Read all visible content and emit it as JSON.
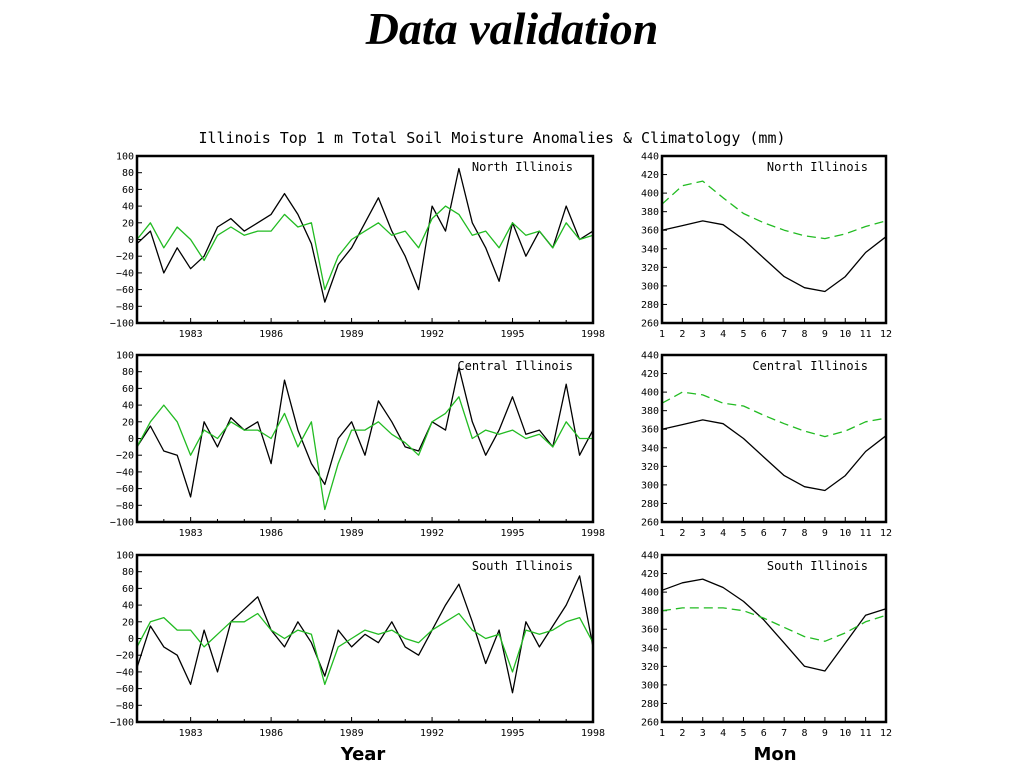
{
  "slide": {
    "title": "Data validation"
  },
  "figure": {
    "title": "Illinois Top 1 m Total Soil Moisture Anomalies & Climatology (mm)",
    "xlabel_left": "Year",
    "xlabel_right": "Mon",
    "colors": {
      "series1": "#000000",
      "series2": "#22bb22",
      "frame": "#000000"
    }
  },
  "chart_data": [
    {
      "type": "line",
      "panel": "anomaly",
      "label": "North Illinois",
      "xlim": [
        1981,
        1998
      ],
      "ylim": [
        -100,
        100
      ],
      "xticks": [
        "1983",
        "1986",
        "1989",
        "1992",
        "1995",
        "1998"
      ],
      "yticks": [
        "100",
        "80",
        "60",
        "40",
        "20",
        "0",
        "−20",
        "−40",
        "−60",
        "−80",
        "−100"
      ],
      "xticks_num": [
        1983,
        1986,
        1989,
        1992,
        1995,
        1998
      ],
      "yticks_num": [
        100,
        80,
        60,
        40,
        20,
        0,
        -20,
        -40,
        -60,
        -80,
        -100
      ],
      "x": [
        1981,
        1981.5,
        1982,
        1982.5,
        1983,
        1983.5,
        1984,
        1984.5,
        1985,
        1985.5,
        1986,
        1986.5,
        1987,
        1987.5,
        1988,
        1988.5,
        1989,
        1989.5,
        1990,
        1990.5,
        1991,
        1991.5,
        1992,
        1992.5,
        1993,
        1993.5,
        1994,
        1994.5,
        1995,
        1995.5,
        1996,
        1996.5,
        1997,
        1997.5,
        1998
      ],
      "series": [
        {
          "values": [
            -5,
            10,
            -40,
            -10,
            -35,
            -20,
            15,
            25,
            10,
            20,
            30,
            55,
            30,
            -5,
            -75,
            -30,
            -10,
            20,
            50,
            10,
            -20,
            -60,
            40,
            10,
            85,
            20,
            -10,
            -50,
            20,
            -20,
            10,
            -10,
            40,
            0,
            10
          ]
        },
        {
          "values": [
            0,
            20,
            -10,
            15,
            0,
            -25,
            5,
            15,
            5,
            10,
            10,
            30,
            15,
            20,
            -60,
            -20,
            0,
            10,
            20,
            5,
            10,
            -10,
            25,
            40,
            30,
            5,
            10,
            -10,
            20,
            5,
            10,
            -10,
            20,
            0,
            5
          ]
        }
      ]
    },
    {
      "type": "line",
      "panel": "climatology",
      "label": "North Illinois",
      "xlim": [
        1,
        12
      ],
      "ylim": [
        260,
        440
      ],
      "xticks": [
        "1",
        "2",
        "3",
        "4",
        "5",
        "6",
        "7",
        "8",
        "9",
        "10",
        "11",
        "12"
      ],
      "yticks": [
        "440",
        "420",
        "400",
        "380",
        "360",
        "340",
        "320",
        "300",
        "280",
        "260"
      ],
      "xticks_num": [
        1,
        2,
        3,
        4,
        5,
        6,
        7,
        8,
        9,
        10,
        11,
        12
      ],
      "yticks_num": [
        440,
        420,
        400,
        380,
        360,
        340,
        320,
        300,
        280,
        260
      ],
      "x": [
        1,
        2,
        3,
        4,
        5,
        6,
        7,
        8,
        9,
        10,
        11,
        12
      ],
      "series": [
        {
          "values": [
            360,
            365,
            370,
            366,
            350,
            330,
            310,
            298,
            294,
            310,
            336,
            353
          ]
        },
        {
          "values": [
            388,
            408,
            413,
            395,
            378,
            368,
            360,
            354,
            351,
            356,
            364,
            370
          ]
        }
      ]
    },
    {
      "type": "line",
      "panel": "anomaly",
      "label": "Central Illinois",
      "xlim": [
        1981,
        1998
      ],
      "ylim": [
        -100,
        100
      ],
      "xticks": [
        "1983",
        "1986",
        "1989",
        "1992",
        "1995",
        "1998"
      ],
      "yticks": [
        "100",
        "80",
        "60",
        "40",
        "20",
        "0",
        "−20",
        "−40",
        "−60",
        "−80",
        "−100"
      ],
      "xticks_num": [
        1983,
        1986,
        1989,
        1992,
        1995,
        1998
      ],
      "yticks_num": [
        100,
        80,
        60,
        40,
        20,
        0,
        -20,
        -40,
        -60,
        -80,
        -100
      ],
      "x": [
        1981,
        1981.5,
        1982,
        1982.5,
        1983,
        1983.5,
        1984,
        1984.5,
        1985,
        1985.5,
        1986,
        1986.5,
        1987,
        1987.5,
        1988,
        1988.5,
        1989,
        1989.5,
        1990,
        1990.5,
        1991,
        1991.5,
        1992,
        1992.5,
        1993,
        1993.5,
        1994,
        1994.5,
        1995,
        1995.5,
        1996,
        1996.5,
        1997,
        1997.5,
        1998
      ],
      "series": [
        {
          "values": [
            -10,
            15,
            -15,
            -20,
            -70,
            20,
            -10,
            25,
            10,
            20,
            -30,
            70,
            10,
            -30,
            -55,
            0,
            20,
            -20,
            45,
            20,
            -10,
            -15,
            20,
            10,
            85,
            20,
            -20,
            10,
            50,
            5,
            10,
            -10,
            65,
            -20,
            10
          ]
        },
        {
          "values": [
            -10,
            20,
            40,
            20,
            -20,
            10,
            0,
            20,
            10,
            10,
            0,
            30,
            -10,
            20,
            -85,
            -30,
            10,
            10,
            20,
            5,
            -5,
            -20,
            20,
            30,
            50,
            0,
            10,
            5,
            10,
            0,
            5,
            -10,
            20,
            0,
            0
          ]
        }
      ]
    },
    {
      "type": "line",
      "panel": "climatology",
      "label": "Central Illinois",
      "xlim": [
        1,
        12
      ],
      "ylim": [
        260,
        440
      ],
      "xticks": [
        "1",
        "2",
        "3",
        "4",
        "5",
        "6",
        "7",
        "8",
        "9",
        "10",
        "11",
        "12"
      ],
      "yticks": [
        "440",
        "420",
        "400",
        "380",
        "360",
        "340",
        "320",
        "300",
        "280",
        "260"
      ],
      "xticks_num": [
        1,
        2,
        3,
        4,
        5,
        6,
        7,
        8,
        9,
        10,
        11,
        12
      ],
      "yticks_num": [
        440,
        420,
        400,
        380,
        360,
        340,
        320,
        300,
        280,
        260
      ],
      "x": [
        1,
        2,
        3,
        4,
        5,
        6,
        7,
        8,
        9,
        10,
        11,
        12
      ],
      "series": [
        {
          "values": [
            360,
            365,
            370,
            366,
            350,
            330,
            310,
            298,
            294,
            310,
            336,
            353
          ]
        },
        {
          "values": [
            388,
            400,
            397,
            388,
            385,
            375,
            366,
            358,
            352,
            358,
            368,
            372
          ]
        }
      ]
    },
    {
      "type": "line",
      "panel": "anomaly",
      "label": "South Illinois",
      "xlim": [
        1981,
        1998
      ],
      "ylim": [
        -100,
        100
      ],
      "xticks": [
        "1983",
        "1986",
        "1989",
        "1992",
        "1995",
        "1998"
      ],
      "yticks": [
        "100",
        "80",
        "60",
        "40",
        "20",
        "0",
        "−20",
        "−40",
        "−60",
        "−80",
        "−100"
      ],
      "xticks_num": [
        1983,
        1986,
        1989,
        1992,
        1995,
        1998
      ],
      "yticks_num": [
        100,
        80,
        60,
        40,
        20,
        0,
        -20,
        -40,
        -60,
        -80,
        -100
      ],
      "x": [
        1981,
        1981.5,
        1982,
        1982.5,
        1983,
        1983.5,
        1984,
        1984.5,
        1985,
        1985.5,
        1986,
        1986.5,
        1987,
        1987.5,
        1988,
        1988.5,
        1989,
        1989.5,
        1990,
        1990.5,
        1991,
        1991.5,
        1992,
        1992.5,
        1993,
        1993.5,
        1994,
        1994.5,
        1995,
        1995.5,
        1996,
        1996.5,
        1997,
        1997.5,
        1998
      ],
      "series": [
        {
          "values": [
            -35,
            15,
            -10,
            -20,
            -55,
            10,
            -40,
            20,
            35,
            50,
            10,
            -10,
            20,
            -5,
            -45,
            10,
            -10,
            5,
            -5,
            20,
            -10,
            -20,
            10,
            40,
            65,
            20,
            -30,
            10,
            -65,
            20,
            -10,
            15,
            40,
            75,
            -10
          ]
        },
        {
          "values": [
            -10,
            20,
            25,
            10,
            10,
            -10,
            5,
            20,
            20,
            30,
            10,
            0,
            10,
            5,
            -55,
            -10,
            0,
            10,
            5,
            10,
            0,
            -5,
            10,
            20,
            30,
            10,
            0,
            5,
            -40,
            10,
            5,
            10,
            20,
            25,
            -5
          ]
        }
      ]
    },
    {
      "type": "line",
      "panel": "climatology",
      "label": "South Illinois",
      "xlim": [
        1,
        12
      ],
      "ylim": [
        260,
        440
      ],
      "xticks": [
        "1",
        "2",
        "3",
        "4",
        "5",
        "6",
        "7",
        "8",
        "9",
        "10",
        "11",
        "12"
      ],
      "yticks": [
        "440",
        "420",
        "400",
        "380",
        "360",
        "340",
        "320",
        "300",
        "280",
        "260"
      ],
      "xticks_num": [
        1,
        2,
        3,
        4,
        5,
        6,
        7,
        8,
        9,
        10,
        11,
        12
      ],
      "yticks_num": [
        440,
        420,
        400,
        380,
        360,
        340,
        320,
        300,
        280,
        260
      ],
      "x": [
        1,
        2,
        3,
        4,
        5,
        6,
        7,
        8,
        9,
        10,
        11,
        12
      ],
      "series": [
        {
          "values": [
            402,
            410,
            414,
            405,
            390,
            370,
            345,
            320,
            315,
            345,
            375,
            382
          ]
        },
        {
          "values": [
            380,
            383,
            383,
            383,
            380,
            372,
            362,
            352,
            347,
            356,
            368,
            375
          ]
        }
      ]
    }
  ]
}
